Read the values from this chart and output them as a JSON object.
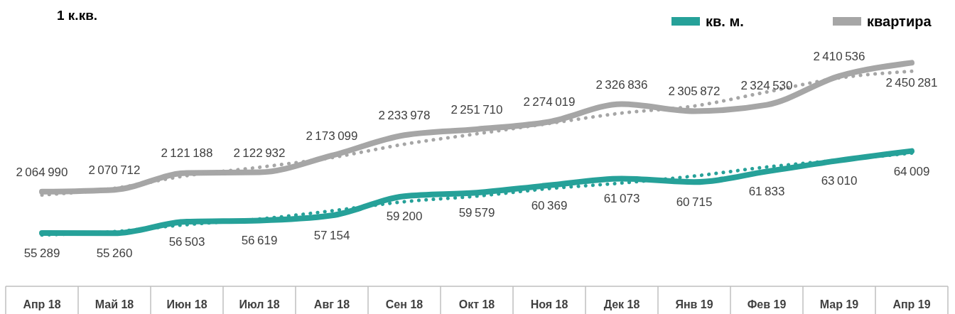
{
  "chart_data": {
    "type": "line",
    "title": "1 к.кв.",
    "categories": [
      "Апр 18",
      "Май 18",
      "Июн 18",
      "Июл 18",
      "Авг 18",
      "Сен 18",
      "Окт 18",
      "Ноя 18",
      "Дек 18",
      "Янв 19",
      "Фев 19",
      "Мар 19",
      "Апр 19"
    ],
    "series": [
      {
        "name": "кв. м.",
        "color": "#26a199",
        "axis": "y2",
        "values": [
          55289,
          55260,
          56503,
          56619,
          57154,
          59200,
          59579,
          60369,
          61073,
          60715,
          61833,
          63010,
          64009
        ]
      },
      {
        "name": "квартира",
        "color": "#a6a6a6",
        "values": [
          2064990,
          2070712,
          2121188,
          2122932,
          2173099,
          2233978,
          2251710,
          2274019,
          2326836,
          2305872,
          2324530,
          2410536,
          2450281
        ]
      },
      {
        "type": "line",
        "line_style": "dotted",
        "data_labels": false,
        "color": "#a6a6a6",
        "values": [
          2055000,
          2075000,
          2113000,
          2138000,
          2167000,
          2207000,
          2238000,
          2269000,
          2300000,
          2321000,
          2363000,
          2405000,
          2425000
        ]
      },
      {
        "type": "line",
        "line_style": "dotted",
        "data_labels": false,
        "color": "#26a199",
        "axis": "y2",
        "values": [
          55070,
          55440,
          56180,
          56770,
          57650,
          58620,
          59210,
          60020,
          60610,
          61350,
          62310,
          63050,
          63790
        ]
      }
    ],
    "tick_labels": "x",
    "line_style": "solid",
    "data_labels": true,
    "legend": "top right"
  }
}
